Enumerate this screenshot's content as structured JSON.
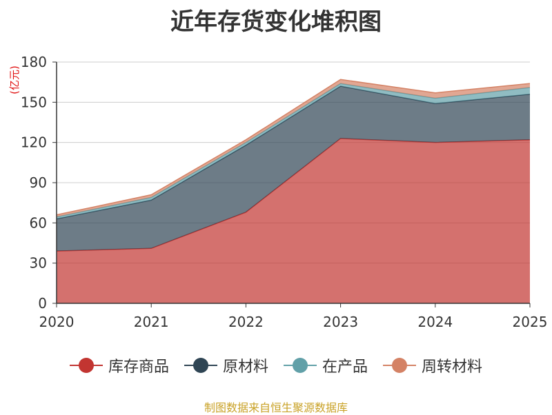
{
  "title": "近年存货变化堆积图",
  "source": "制图数据来自恒生聚源数据库",
  "chart_data": {
    "type": "area",
    "stacked": true,
    "unit_label": "(亿元)",
    "categories": [
      "2020",
      "2021",
      "2022",
      "2023",
      "2024",
      "2025"
    ],
    "ylim": [
      0,
      180
    ],
    "yticks": [
      0,
      30,
      60,
      90,
      120,
      150,
      180
    ],
    "grid": true,
    "legend_position": "bottom",
    "series": [
      {
        "name": "库存商品",
        "color": "#c23531",
        "values": [
          39,
          41,
          68,
          123,
          120,
          122
        ]
      },
      {
        "name": "原材料",
        "color": "#2f4554",
        "values": [
          24,
          36,
          50,
          39,
          29,
          34
        ]
      },
      {
        "name": "在产品",
        "color": "#61a0a8",
        "values": [
          1.5,
          2,
          2,
          2,
          4,
          5
        ]
      },
      {
        "name": "周转材料",
        "color": "#d48265",
        "values": [
          1.5,
          2,
          2,
          3,
          4,
          3
        ]
      }
    ]
  }
}
